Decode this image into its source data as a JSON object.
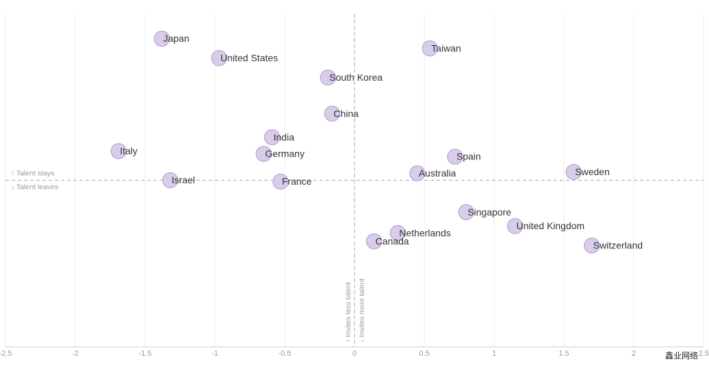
{
  "chart_data": {
    "type": "scatter",
    "labels": [
      "Japan",
      "United States",
      "South Korea",
      "Taiwan",
      "China",
      "India",
      "Italy",
      "Germany",
      "Spain",
      "Sweden",
      "Australia",
      "Israel",
      "France",
      "Singapore",
      "United Kingdom",
      "Netherlands",
      "Canada",
      "Switzerland"
    ],
    "x": [
      -1.38,
      -0.97,
      -0.19,
      0.54,
      -0.16,
      -0.59,
      -1.69,
      -0.65,
      0.72,
      1.57,
      0.45,
      -1.32,
      -0.53,
      0.8,
      1.15,
      0.31,
      0.14,
      1.7
    ],
    "values": [
      1.02,
      0.88,
      0.74,
      0.95,
      0.48,
      0.31,
      0.21,
      0.19,
      0.17,
      0.06,
      0.05,
      0.0,
      -0.01,
      -0.23,
      -0.33,
      -0.38,
      -0.44,
      -0.47
    ],
    "color": "#d9cdea",
    "xlim": [
      -2.5,
      2.5
    ],
    "ylim": [
      -1.2,
      1.2
    ],
    "xticks": [
      -2.5,
      -2,
      -1.5,
      -1,
      -0.5,
      0,
      0.5,
      1,
      1.5,
      2,
      2.5
    ],
    "grid": true,
    "annotations": [
      "↑ Talent stays",
      "↓ Talent leaves",
      "↑ Invites less talent",
      "↓ Invites more talent"
    ],
    "watermark": "鑫业网络"
  }
}
